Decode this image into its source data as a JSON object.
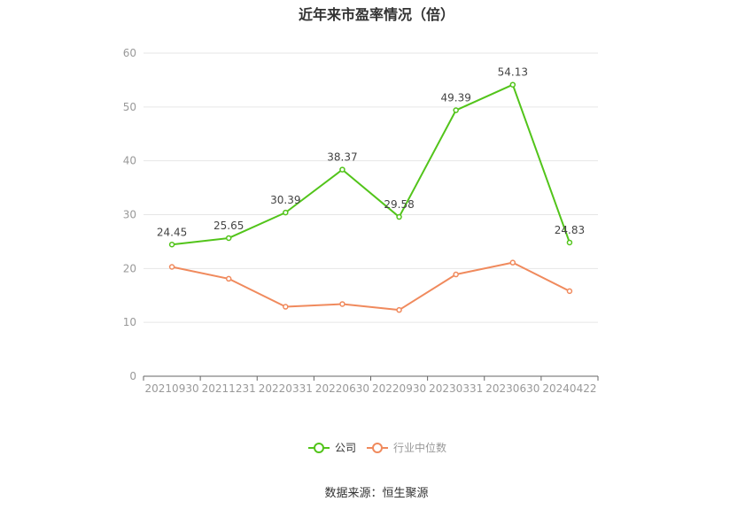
{
  "title": "近年来市盈率情况（倍）",
  "source": "数据来源：恒生聚源",
  "chart_data": {
    "type": "line",
    "title": "近年来市盈率情况（倍）",
    "categories": [
      "20210930",
      "20211231",
      "20220331",
      "20220630",
      "20220930",
      "20230331",
      "20230630",
      "20240422"
    ],
    "ylim": [
      0,
      60
    ],
    "yticks": [
      0,
      10,
      20,
      30,
      40,
      50,
      60
    ],
    "grid": true,
    "legend_position": "bottom",
    "series": [
      {
        "name": "公司",
        "color": "#52c41a",
        "values": [
          24.45,
          25.65,
          30.39,
          38.37,
          29.58,
          49.39,
          54.13,
          24.83
        ],
        "show_labels": true
      },
      {
        "name": "行业中位数",
        "color": "#f08a5d",
        "values": [
          20.3,
          18.1,
          12.9,
          13.4,
          12.3,
          18.9,
          21.1,
          15.8
        ],
        "show_labels": false
      }
    ]
  }
}
